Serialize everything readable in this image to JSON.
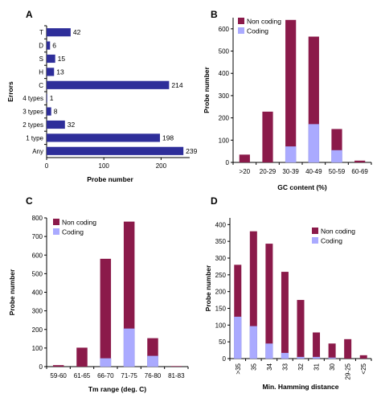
{
  "colors": {
    "navy": "#2e2e9a",
    "noncoding": "#8b1a4a",
    "coding": "#aaaaff",
    "axis": "#000000"
  },
  "chart_data": [
    {
      "panel": "A",
      "type": "bar",
      "orientation": "horizontal",
      "categories": [
        "T",
        "D",
        "S",
        "H",
        "C",
        "4 types",
        "3 types",
        "2 types",
        "1 type",
        "Any"
      ],
      "values": [
        42,
        6,
        15,
        13,
        214,
        1,
        8,
        32,
        198,
        239
      ],
      "xlabel": "Probe number",
      "ylabel": "Errors",
      "xlim": [
        0,
        250
      ],
      "xticks": [
        0,
        100,
        200
      ]
    },
    {
      "panel": "B",
      "type": "bar",
      "stacked": true,
      "categories": [
        ">20",
        "20-29",
        "30-39",
        "40-49",
        "50-59",
        "60-69"
      ],
      "series": [
        {
          "name": "Coding",
          "values": [
            0,
            0,
            72,
            172,
            55,
            0
          ]
        },
        {
          "name": "Non coding",
          "values": [
            35,
            228,
            568,
            393,
            95,
            8
          ]
        }
      ],
      "xlabel": "GC content (%)",
      "ylabel": "Probe number",
      "ylim": [
        0,
        650
      ],
      "yticks": [
        0,
        100,
        200,
        300,
        400,
        500,
        600
      ],
      "legend": "top-left"
    },
    {
      "panel": "C",
      "type": "bar",
      "stacked": true,
      "categories": [
        "59-60",
        "61-65",
        "66-70",
        "71-75",
        "76-80",
        "81-83"
      ],
      "series": [
        {
          "name": "Coding",
          "values": [
            0,
            0,
            45,
            205,
            58,
            0
          ]
        },
        {
          "name": "Non coding",
          "values": [
            8,
            102,
            535,
            575,
            95,
            3
          ]
        }
      ],
      "xlabel": "Tm range (deg. C)",
      "ylabel": "Probe number",
      "ylim": [
        0,
        800
      ],
      "yticks": [
        0,
        100,
        200,
        300,
        400,
        500,
        600,
        700,
        800
      ],
      "legend": "top-left"
    },
    {
      "panel": "D",
      "type": "bar",
      "stacked": true,
      "categories": [
        ">35",
        "35",
        "34",
        "33",
        "32",
        "31",
        "30",
        "29-25",
        "<25"
      ],
      "series": [
        {
          "name": "Coding",
          "values": [
            125,
            97,
            45,
            17,
            5,
            5,
            3,
            0,
            0
          ]
        },
        {
          "name": "Non coding",
          "values": [
            155,
            283,
            298,
            242,
            170,
            73,
            42,
            58,
            10
          ]
        }
      ],
      "xlabel": "Min. Hamming distance",
      "ylabel": "Probe number",
      "ylim": [
        0,
        420
      ],
      "yticks": [
        0,
        50,
        100,
        150,
        200,
        250,
        300,
        350,
        400
      ],
      "legend": "top-right"
    }
  ]
}
